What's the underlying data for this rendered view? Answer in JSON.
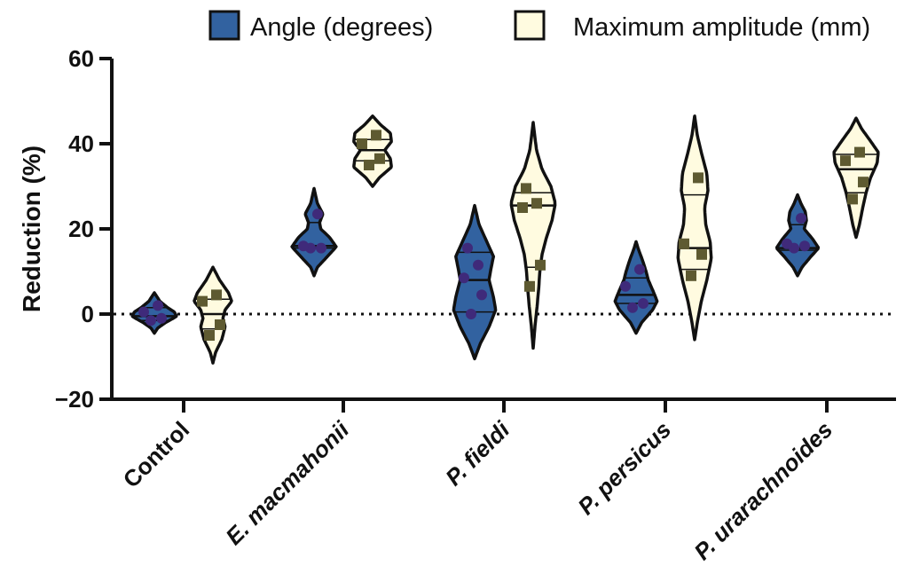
{
  "chart_data": {
    "type": "violin",
    "ylabel": "Reduction (%)",
    "ylim": [
      -20,
      60
    ],
    "yticks": [
      -20,
      0,
      20,
      40,
      60
    ],
    "reference_line": 0,
    "legend_position": "top-right",
    "categories": [
      "Control",
      "E. macmahonii",
      "P. fieldi",
      "P. persicus",
      "P. urarachnoides"
    ],
    "italic_categories": [
      false,
      true,
      true,
      true,
      true
    ],
    "colors": {
      "angle_fill": "#3262a0",
      "angle_marker": "#3f2a7a",
      "amp_fill": "#fffbe0",
      "amp_marker": "#5e5a31",
      "stroke": "#111111"
    },
    "series": [
      {
        "name": "Angle (degrees)",
        "marker": "circle",
        "groups": [
          {
            "points": [
              -1.5,
              -1,
              0.5,
              2
            ],
            "ymin": -4.5,
            "ymax": 5,
            "median": -0.5,
            "q1": -1.5,
            "q3": 1.5,
            "profile": [
              [
                -4.5,
                0
              ],
              [
                -3.3,
                0.15
              ],
              [
                -2,
                0.5
              ],
              [
                -1,
                0.85
              ],
              [
                -0.5,
                1
              ],
              [
                0.5,
                0.9
              ],
              [
                1.5,
                0.6
              ],
              [
                3,
                0.25
              ],
              [
                4.2,
                0.1
              ],
              [
                5,
                0
              ]
            ]
          },
          {
            "points": [
              15.5,
              15.5,
              16,
              23.5
            ],
            "ymin": 9,
            "ymax": 29.5,
            "median": 16,
            "q1": 15.5,
            "q3": 21.5,
            "profile": [
              [
                9,
                0
              ],
              [
                11,
                0.15
              ],
              [
                13.5,
                0.6
              ],
              [
                15.8,
                1
              ],
              [
                18,
                0.7
              ],
              [
                20,
                0.3
              ],
              [
                21.5,
                0.25
              ],
              [
                23.5,
                0.4
              ],
              [
                26,
                0.15
              ],
              [
                29.5,
                0
              ]
            ]
          },
          {
            "points": [
              0,
              4.5,
              8.5,
              11.5,
              15.5
            ],
            "ymin": -10.5,
            "ymax": 25.5,
            "median": 8,
            "q1": 0.5,
            "q3": 14.5,
            "profile": [
              [
                -10.5,
                0
              ],
              [
                -7,
                0.25
              ],
              [
                -3,
                0.65
              ],
              [
                1,
                0.95
              ],
              [
                4,
                0.85
              ],
              [
                8,
                0.65
              ],
              [
                11,
                0.75
              ],
              [
                13.5,
                0.85
              ],
              [
                17,
                0.55
              ],
              [
                21,
                0.2
              ],
              [
                25.5,
                0
              ]
            ]
          },
          {
            "points": [
              1.5,
              2.5,
              6.5,
              10.5
            ],
            "ymin": -4.5,
            "ymax": 17,
            "median": 4.5,
            "q1": 2.5,
            "q3": 8.5,
            "profile": [
              [
                -4.5,
                0
              ],
              [
                -2,
                0.25
              ],
              [
                1,
                0.75
              ],
              [
                3,
                0.95
              ],
              [
                5,
                0.8
              ],
              [
                8,
                0.55
              ],
              [
                10,
                0.45
              ],
              [
                12.5,
                0.3
              ],
              [
                15,
                0.12
              ],
              [
                17,
                0
              ]
            ]
          },
          {
            "points": [
              15.5,
              16,
              16.5,
              22.5
            ],
            "ymin": 9,
            "ymax": 28,
            "median": 15.5,
            "q1": 15,
            "q3": 21,
            "profile": [
              [
                9,
                0
              ],
              [
                11,
                0.2
              ],
              [
                13.5,
                0.6
              ],
              [
                15.5,
                0.95
              ],
              [
                17.5,
                0.7
              ],
              [
                20,
                0.3
              ],
              [
                22,
                0.4
              ],
              [
                24,
                0.35
              ],
              [
                26,
                0.15
              ],
              [
                28,
                0
              ]
            ]
          }
        ]
      },
      {
        "name": "Maximum amplitude (mm)",
        "marker": "square",
        "groups": [
          {
            "points": [
              -5,
              -2.5,
              3,
              4.5
            ],
            "ymin": -11.5,
            "ymax": 11,
            "median": 0,
            "q1": -3.5,
            "q3": 3.5,
            "profile": [
              [
                -11.5,
                0
              ],
              [
                -9,
                0.12
              ],
              [
                -6,
                0.4
              ],
              [
                -3,
                0.55
              ],
              [
                -1,
                0.45
              ],
              [
                1,
                0.55
              ],
              [
                3,
                0.85
              ],
              [
                5,
                0.7
              ],
              [
                8,
                0.3
              ],
              [
                11,
                0
              ]
            ]
          },
          {
            "points": [
              35,
              36.5,
              40,
              42
            ],
            "ymin": 30,
            "ymax": 46.5,
            "median": 38.5,
            "q1": 36,
            "q3": 41,
            "profile": [
              [
                30,
                0
              ],
              [
                32,
                0.3
              ],
              [
                34.5,
                0.85
              ],
              [
                36.5,
                0.8
              ],
              [
                38.5,
                0.55
              ],
              [
                40.5,
                0.85
              ],
              [
                42.5,
                0.8
              ],
              [
                44.5,
                0.35
              ],
              [
                46.5,
                0
              ]
            ]
          },
          {
            "points": [
              6.5,
              11.5,
              25,
              26,
              29.5
            ],
            "ymin": -8,
            "ymax": 45,
            "median": 25.5,
            "q1": 11,
            "q3": 28.5,
            "profile": [
              [
                -8,
                0
              ],
              [
                -3,
                0.08
              ],
              [
                2,
                0.18
              ],
              [
                6,
                0.25
              ],
              [
                10,
                0.3
              ],
              [
                14,
                0.4
              ],
              [
                18,
                0.6
              ],
              [
                22,
                0.85
              ],
              [
                26,
                1
              ],
              [
                30,
                0.8
              ],
              [
                34,
                0.4
              ],
              [
                38.5,
                0.15
              ],
              [
                45,
                0
              ]
            ]
          },
          {
            "points": [
              9,
              14,
              16.5,
              32
            ],
            "ymin": -6,
            "ymax": 46.5,
            "median": 15.5,
            "q1": 10.5,
            "q3": 28,
            "profile": [
              [
                -6,
                0
              ],
              [
                -2,
                0.12
              ],
              [
                3,
                0.3
              ],
              [
                8,
                0.55
              ],
              [
                13,
                0.75
              ],
              [
                17,
                0.7
              ],
              [
                21,
                0.5
              ],
              [
                25,
                0.45
              ],
              [
                29,
                0.6
              ],
              [
                33,
                0.55
              ],
              [
                38,
                0.3
              ],
              [
                42,
                0.12
              ],
              [
                46.5,
                0
              ]
            ]
          },
          {
            "points": [
              27,
              31,
              36,
              38
            ],
            "ymin": 18,
            "ymax": 46,
            "median": 34,
            "q1": 28.5,
            "q3": 37.5,
            "profile": [
              [
                18,
                0
              ],
              [
                21,
                0.15
              ],
              [
                25,
                0.3
              ],
              [
                28.5,
                0.45
              ],
              [
                32,
                0.65
              ],
              [
                35.5,
                0.95
              ],
              [
                38,
                1
              ],
              [
                41,
                0.6
              ],
              [
                43.5,
                0.25
              ],
              [
                46,
                0
              ]
            ]
          }
        ]
      }
    ]
  }
}
